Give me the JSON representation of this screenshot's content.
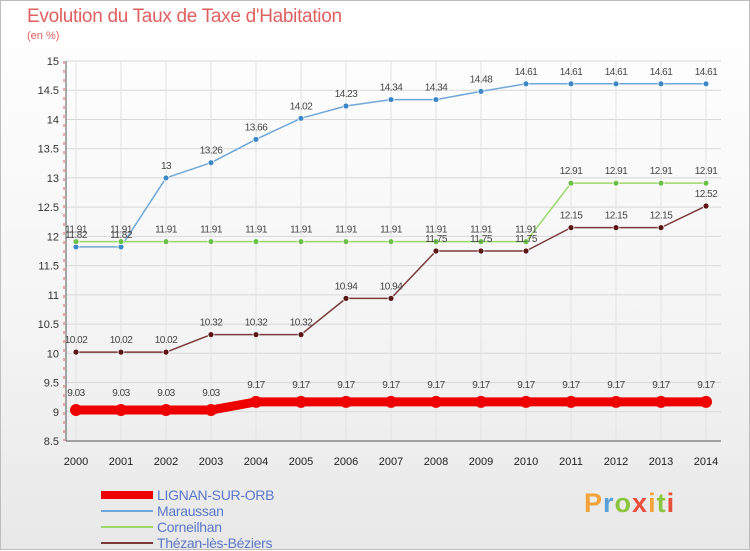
{
  "header": {
    "title": "Evolution du Taux de Taxe d'Habitation",
    "unit": "(en %)"
  },
  "brand": {
    "letters": [
      "P",
      "r",
      "o",
      "x",
      "i",
      "t",
      "i"
    ],
    "colors": [
      "#f2a43a",
      "#5aa0d8",
      "#8cc63f",
      "#e94e3c",
      "#f2a43a",
      "#8cc63f",
      "#e94e3c"
    ]
  },
  "chart_data": {
    "type": "line",
    "title": "Evolution du Taux de Taxe d'Habitation",
    "ylabel": "(en %)",
    "x": [
      "2000",
      "2001",
      "2002",
      "2003",
      "2004",
      "2005",
      "2006",
      "2007",
      "2008",
      "2009",
      "2010",
      "2011",
      "2012",
      "2013",
      "2014"
    ],
    "ylim": [
      8.5,
      15
    ],
    "yticks": [
      "8.5",
      "9",
      "9.5",
      "10",
      "10.5",
      "11",
      "11.5",
      "12",
      "12.5",
      "13",
      "13.5",
      "14",
      "14.5",
      "15"
    ],
    "grid": true,
    "legend_position": "bottom-left",
    "series": [
      {
        "name": "LIGNAN-SUR-ORB",
        "color": "#ee0000",
        "values": [
          9.03,
          9.03,
          9.03,
          9.03,
          9.17,
          9.17,
          9.17,
          9.17,
          9.17,
          9.17,
          9.17,
          9.17,
          9.17,
          9.17,
          9.17
        ],
        "labels": [
          "9.03",
          "9.03",
          "9.03",
          "9.03",
          "9.17",
          "9.17",
          "9.17",
          "9.17",
          "9.17",
          "9.17",
          "9.17",
          "9.17",
          "9.17",
          "9.17",
          "9.17"
        ]
      },
      {
        "name": "Maraussan",
        "color": "#6fa7d8",
        "marker": "#3c87c6",
        "values": [
          11.82,
          11.82,
          13,
          13.26,
          13.66,
          14.02,
          14.23,
          14.34,
          14.34,
          14.48,
          14.61,
          14.61,
          14.61,
          14.61,
          14.61
        ],
        "labels": [
          "11.82",
          "11.82",
          "13",
          "13.26",
          "13.66",
          "14.02",
          "14.23",
          "14.34",
          "14.34",
          "14.48",
          "14.61",
          "14.61",
          "14.61",
          "14.61",
          "14.61"
        ]
      },
      {
        "name": "Corneilhan",
        "color": "#9bd86a",
        "marker": "#6cc04a",
        "values": [
          11.91,
          11.91,
          11.91,
          11.91,
          11.91,
          11.91,
          11.91,
          11.91,
          11.91,
          11.91,
          11.91,
          12.91,
          12.91,
          12.91,
          12.91
        ],
        "labels": [
          "11.91",
          "11.91",
          "11.91",
          "11.91",
          "11.91",
          "11.91",
          "11.91",
          "11.91",
          "11.91",
          "11.91",
          "11.91",
          "12.91",
          "12.91",
          "12.91",
          "12.91"
        ]
      },
      {
        "name": "Thézan-lès-Béziers",
        "color": "#7a3a3a",
        "marker": "#5a1515",
        "values": [
          10.02,
          10.02,
          10.02,
          10.32,
          10.32,
          10.32,
          10.94,
          10.94,
          11.75,
          11.75,
          11.75,
          12.15,
          12.15,
          12.15,
          12.52
        ],
        "labels": [
          "10.02",
          "10.02",
          "10.02",
          "10.32",
          "10.32",
          "10.32",
          "10.94",
          "10.94",
          "11.75",
          "11.75",
          "11.75",
          "12.15",
          "12.15",
          "12.15",
          "12.52"
        ]
      }
    ]
  }
}
